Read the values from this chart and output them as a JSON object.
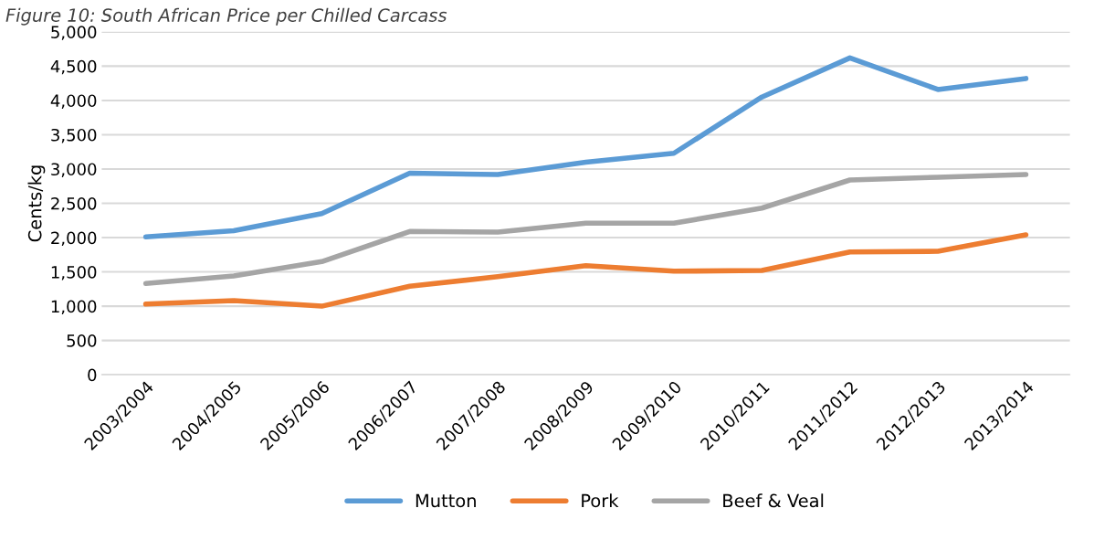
{
  "chart_data": {
    "type": "line",
    "title": "Figure 10: South African Price per Chilled Carcass",
    "ylabel": "Cents/kg",
    "categories": [
      "2003/2004",
      "2004/2005",
      "2005/2006",
      "2006/2007",
      "2007/2008",
      "2008/2009",
      "2009/2010",
      "2010/2011",
      "2011/2012",
      "2012/2013",
      "2013/2014"
    ],
    "series": [
      {
        "name": "Mutton",
        "color": "#5b9bd5",
        "values": [
          2010,
          2100,
          2350,
          2940,
          2920,
          3100,
          3230,
          4050,
          4620,
          4160,
          4320
        ]
      },
      {
        "name": "Pork",
        "color": "#ed7d31",
        "values": [
          1030,
          1080,
          1000,
          1290,
          1430,
          1590,
          1510,
          1520,
          1790,
          1800,
          2040
        ]
      },
      {
        "name": "Beef & Veal",
        "color": "#a5a5a5",
        "values": [
          1330,
          1440,
          1650,
          2090,
          2080,
          2210,
          2210,
          2430,
          2840,
          2880,
          2920
        ]
      }
    ],
    "ylim": [
      0,
      5000
    ],
    "yticks": [
      {
        "value": 0,
        "label": "0"
      },
      {
        "value": 500,
        "label": "500"
      },
      {
        "value": 1000,
        "label": "1,000"
      },
      {
        "value": 1500,
        "label": "1,500"
      },
      {
        "value": 2000,
        "label": "2,000"
      },
      {
        "value": 2500,
        "label": "2,500"
      },
      {
        "value": 3000,
        "label": "3,000"
      },
      {
        "value": 3500,
        "label": "3,500"
      },
      {
        "value": 4000,
        "label": "4,000"
      },
      {
        "value": 4500,
        "label": "4,500"
      },
      {
        "value": 5000,
        "label": "5,000"
      }
    ],
    "grid": "y",
    "legend": "bottom",
    "marker": "none",
    "line_style": "solid"
  }
}
